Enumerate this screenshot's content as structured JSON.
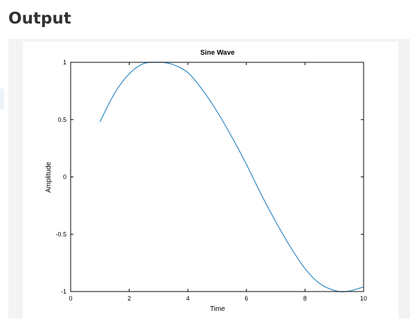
{
  "page": {
    "heading": "Output"
  },
  "chart_data": {
    "type": "line",
    "title": "Sine Wave",
    "xlabel": "Time",
    "ylabel": "Amplitude",
    "xlim": [
      0,
      10
    ],
    "ylim": [
      -1,
      1
    ],
    "xticks": [
      "0",
      "2",
      "4",
      "6",
      "8",
      "10"
    ],
    "yticks": [
      "-1",
      "-0.5",
      "0",
      "0.5",
      "1"
    ],
    "grid": false,
    "series": [
      {
        "color": "#3d8fc8",
        "x": [
          1.0,
          1.5,
          2.0,
          2.5,
          3.0,
          3.14,
          3.5,
          4.0,
          4.5,
          5.0,
          5.5,
          6.0,
          6.5,
          7.0,
          7.5,
          8.0,
          8.5,
          9.0,
          9.42,
          10.0
        ],
        "y": [
          0.48,
          0.73,
          0.9,
          0.99,
          1.0,
          1.0,
          0.98,
          0.91,
          0.76,
          0.57,
          0.35,
          0.11,
          -0.15,
          -0.39,
          -0.61,
          -0.8,
          -0.93,
          -0.99,
          -1.0,
          -0.96
        ]
      }
    ]
  }
}
